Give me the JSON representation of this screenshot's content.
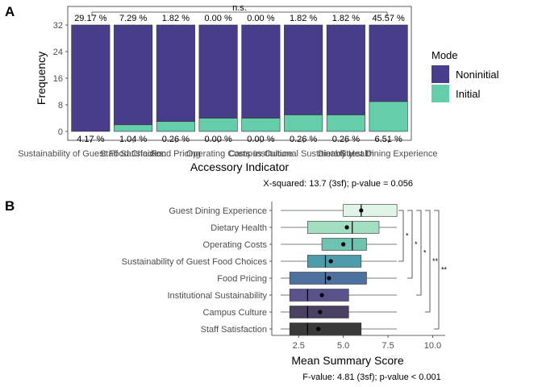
{
  "panel_a": {
    "label": "A",
    "significance": "n.s.",
    "stat_note": "X-squared: 13.7 (3sf); p-value = 0.056",
    "legend": {
      "title": "Mode",
      "items": [
        {
          "name": "Noninitial",
          "color": "#483d8b"
        },
        {
          "name": "Initial",
          "color": "#66cdaa"
        }
      ]
    }
  },
  "panel_b": {
    "label": "B",
    "stat_note": "F-value: 4.81 (3sf); p-value < 0.001"
  },
  "chart_data": [
    {
      "type": "bar",
      "stacked": true,
      "xlabel": "Accessory Indicator",
      "ylabel": "Frequency",
      "ylim": [
        0,
        32
      ],
      "yticks": [
        0,
        8,
        16,
        24,
        32
      ],
      "categories": [
        "Sustainability of Guest Food Choices",
        "Staff Satisfaction",
        "Food Pricing",
        "Operating Costs",
        "Campus Culture",
        "Institutional Sustainability",
        "Dietary Health",
        "Guest Dining Experience"
      ],
      "series": [
        {
          "name": "Initial",
          "values": [
            0,
            2,
            3,
            4,
            4,
            5,
            5,
            9
          ],
          "labels": [
            "4.17 %",
            "1.04 %",
            "0.26 %",
            "0.00 %",
            "0.00 %",
            "0.26 %",
            "0.26 %",
            "6.51 %"
          ],
          "color": "#66cdaa"
        },
        {
          "name": "Noninitial",
          "values": [
            32,
            30,
            29,
            28,
            28,
            27,
            27,
            23
          ],
          "labels": [
            "29.17 %",
            "7.29 %",
            "1.82 %",
            "0.00 %",
            "0.00 %",
            "1.82 %",
            "1.82 %",
            "45.57 %"
          ],
          "color": "#483d8b"
        }
      ],
      "grid": false,
      "legend_position": "right"
    },
    {
      "type": "box",
      "orientation": "horizontal",
      "xlabel": "Mean Summary Score",
      "ylabel": "",
      "xlim": [
        1,
        10.7
      ],
      "xticks": [
        "2.5",
        "5.0",
        "7.5",
        "10.0"
      ],
      "xtick_values": [
        2.5,
        5.0,
        7.5,
        10.0
      ],
      "categories": [
        "Guest Dining Experience",
        "Dietary Health",
        "Operating Costs",
        "Sustainability of Guest Food Choices",
        "Food Pricing",
        "Institutional Sustainability",
        "Campus Culture",
        "Staff Satisfaction"
      ],
      "boxes": [
        {
          "min": 1.5,
          "q1": 5.0,
          "median": 6.0,
          "q3": 8.0,
          "max": 8.0,
          "mean": 6.0,
          "color": "#e0f5e8"
        },
        {
          "min": 1.5,
          "q1": 3.0,
          "median": 5.5,
          "q3": 7.0,
          "max": 8.0,
          "mean": 5.2,
          "color": "#a2dec0"
        },
        {
          "min": 1.5,
          "q1": 3.8,
          "median": 5.5,
          "q3": 6.3,
          "max": 8.0,
          "mean": 5.0,
          "color": "#6ec3b0"
        },
        {
          "min": 1.5,
          "q1": 3.0,
          "median": 4.0,
          "q3": 6.0,
          "max": 8.0,
          "mean": 4.3,
          "color": "#4e9cab"
        },
        {
          "min": 1.5,
          "q1": 2.0,
          "median": 4.0,
          "q3": 6.3,
          "max": 8.0,
          "mean": 4.2,
          "color": "#4d72a0"
        },
        {
          "min": 1.5,
          "q1": 2.0,
          "median": 3.0,
          "q3": 5.3,
          "max": 8.0,
          "mean": 3.8,
          "color": "#5a528a"
        },
        {
          "min": 1.5,
          "q1": 2.0,
          "median": 3.0,
          "q3": 5.3,
          "max": 8.0,
          "mean": 3.7,
          "color": "#4a4062"
        },
        {
          "min": 1.5,
          "q1": 2.0,
          "median": 3.0,
          "q3": 6.0,
          "max": 8.0,
          "mean": 3.6,
          "color": "#3a3a3a"
        }
      ],
      "significance_brackets": [
        {
          "from": "Guest Dining Experience",
          "to": "Sustainability of Guest Food Choices",
          "label": "*"
        },
        {
          "from": "Guest Dining Experience",
          "to": "Food Pricing",
          "label": "*"
        },
        {
          "from": "Guest Dining Experience",
          "to": "Institutional Sustainability",
          "label": "*"
        },
        {
          "from": "Guest Dining Experience",
          "to": "Campus Culture",
          "label": "**"
        },
        {
          "from": "Guest Dining Experience",
          "to": "Staff Satisfaction",
          "label": "**"
        }
      ]
    }
  ]
}
